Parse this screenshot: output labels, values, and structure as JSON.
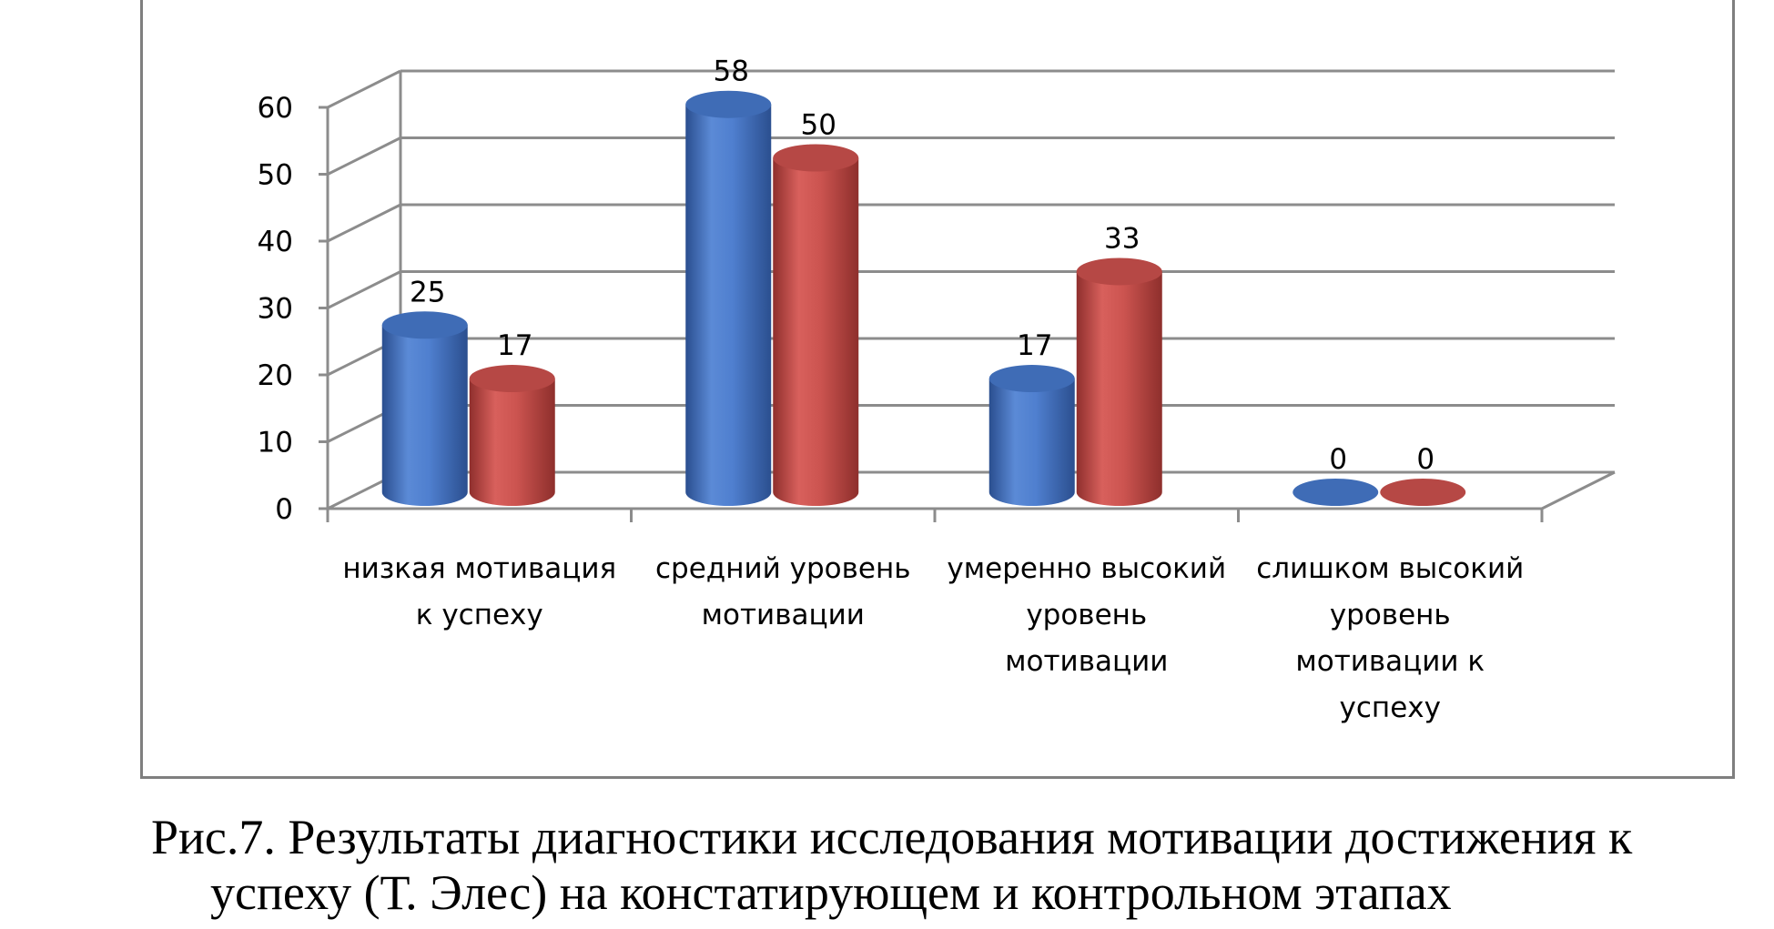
{
  "chart_data": {
    "type": "bar",
    "style": "3d-cylinder",
    "categories": [
      "низкая мотивация к успеху",
      "средний уровень мотивации",
      "умеренно высокий уровень мотивации",
      "слишком высокий уровень мотивации к успеху"
    ],
    "series": [
      {
        "values": [
          25,
          58,
          17,
          0
        ],
        "color": "#4472c4"
      },
      {
        "values": [
          17,
          50,
          33,
          0
        ],
        "color": "#c0504d"
      }
    ],
    "ylim": [
      0,
      60
    ],
    "yticks": [
      "0",
      "10",
      "20",
      "30",
      "40",
      "50",
      "60"
    ],
    "grid": true,
    "legend": "none",
    "data_labels": true
  },
  "caption": {
    "line1": "Рис.7. Результаты диагностики исследования мотивации достижения к",
    "line2": "успеху (Т. Элес) на констатирующем и контрольном этапах"
  }
}
